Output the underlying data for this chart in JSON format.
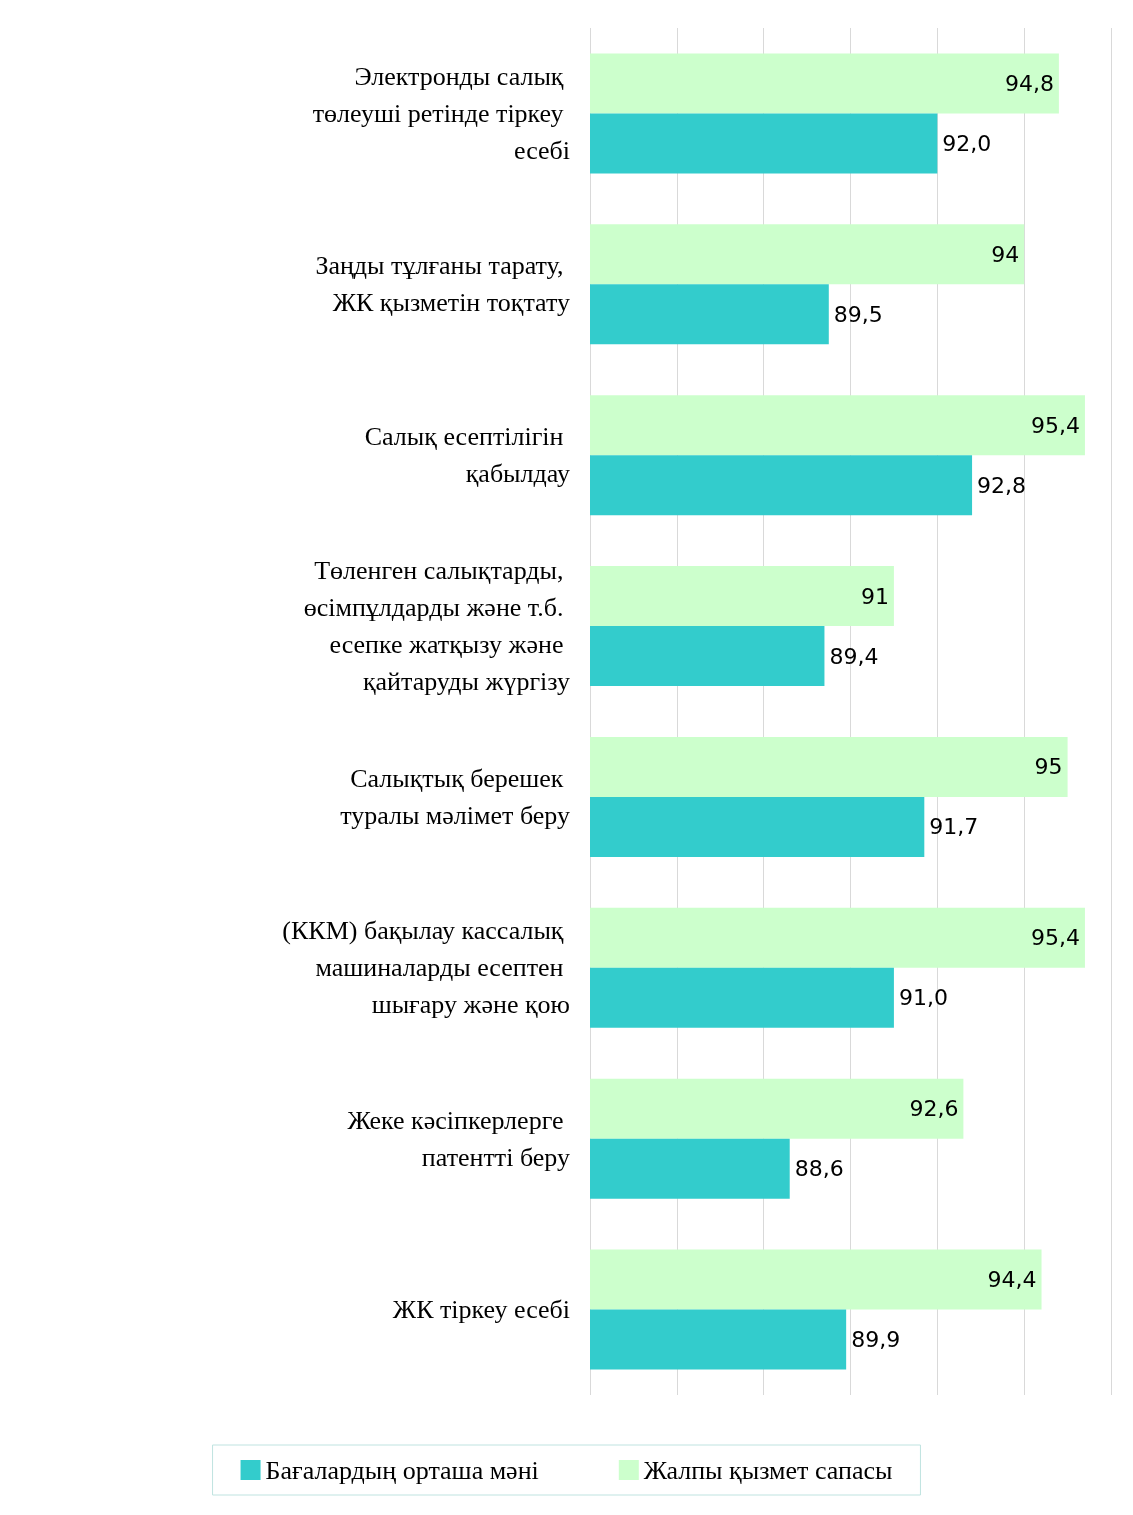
{
  "chart_data": {
    "type": "bar",
    "orientation": "horizontal",
    "categories": [
      "Электронды салық төлеуші ретінде тіркеу есебі",
      "Заңды тұлғаны тарату, ЖК қызметін тоқтату",
      "Салық есептілігін қабылдау",
      "Төленген салықтарды, өсімпұлдарды және т.б. есепке жатқызу және қайтаруды жүргізу",
      "Салықтық берешек туралы мәлімет беру",
      "(ККМ) бақылау кассалық машиналарды есептен шығару және қою",
      "Жеке кәсіпкерлерге патентті беру",
      "ЖК тіркеу есебі"
    ],
    "series": [
      {
        "name": "Жалпы қызмет сапасы",
        "color": "#ccffcc",
        "values": [
          94.8,
          94,
          95.4,
          91,
          95,
          95.4,
          92.6,
          94.4
        ],
        "value_labels": [
          "94,8",
          "94",
          "95,4",
          "91",
          "95",
          "95,4",
          "92,6",
          "94,4"
        ]
      },
      {
        "name": "Бағалардың орташа мәні",
        "color": "#33cccc",
        "values": [
          92.0,
          89.5,
          92.8,
          89.4,
          91.7,
          91.0,
          88.6,
          89.9
        ],
        "value_labels": [
          "92,0",
          "89,5",
          "92,8",
          "89,4",
          "91,7",
          "91,0",
          "88,6",
          "89,9"
        ]
      }
    ],
    "xlim": [
      84,
      96
    ],
    "xticks": [
      {
        "value": 84,
        "label": null
      },
      {
        "value": 86,
        "label": null
      },
      {
        "value": 88,
        "label": null
      },
      {
        "value": 90,
        "label": null
      },
      {
        "value": 92,
        "label": null
      },
      {
        "value": 94,
        "label": null
      },
      {
        "value": 96,
        "label": null
      }
    ],
    "tick_labels": "y",
    "grid": "x",
    "legend": "bottom"
  }
}
